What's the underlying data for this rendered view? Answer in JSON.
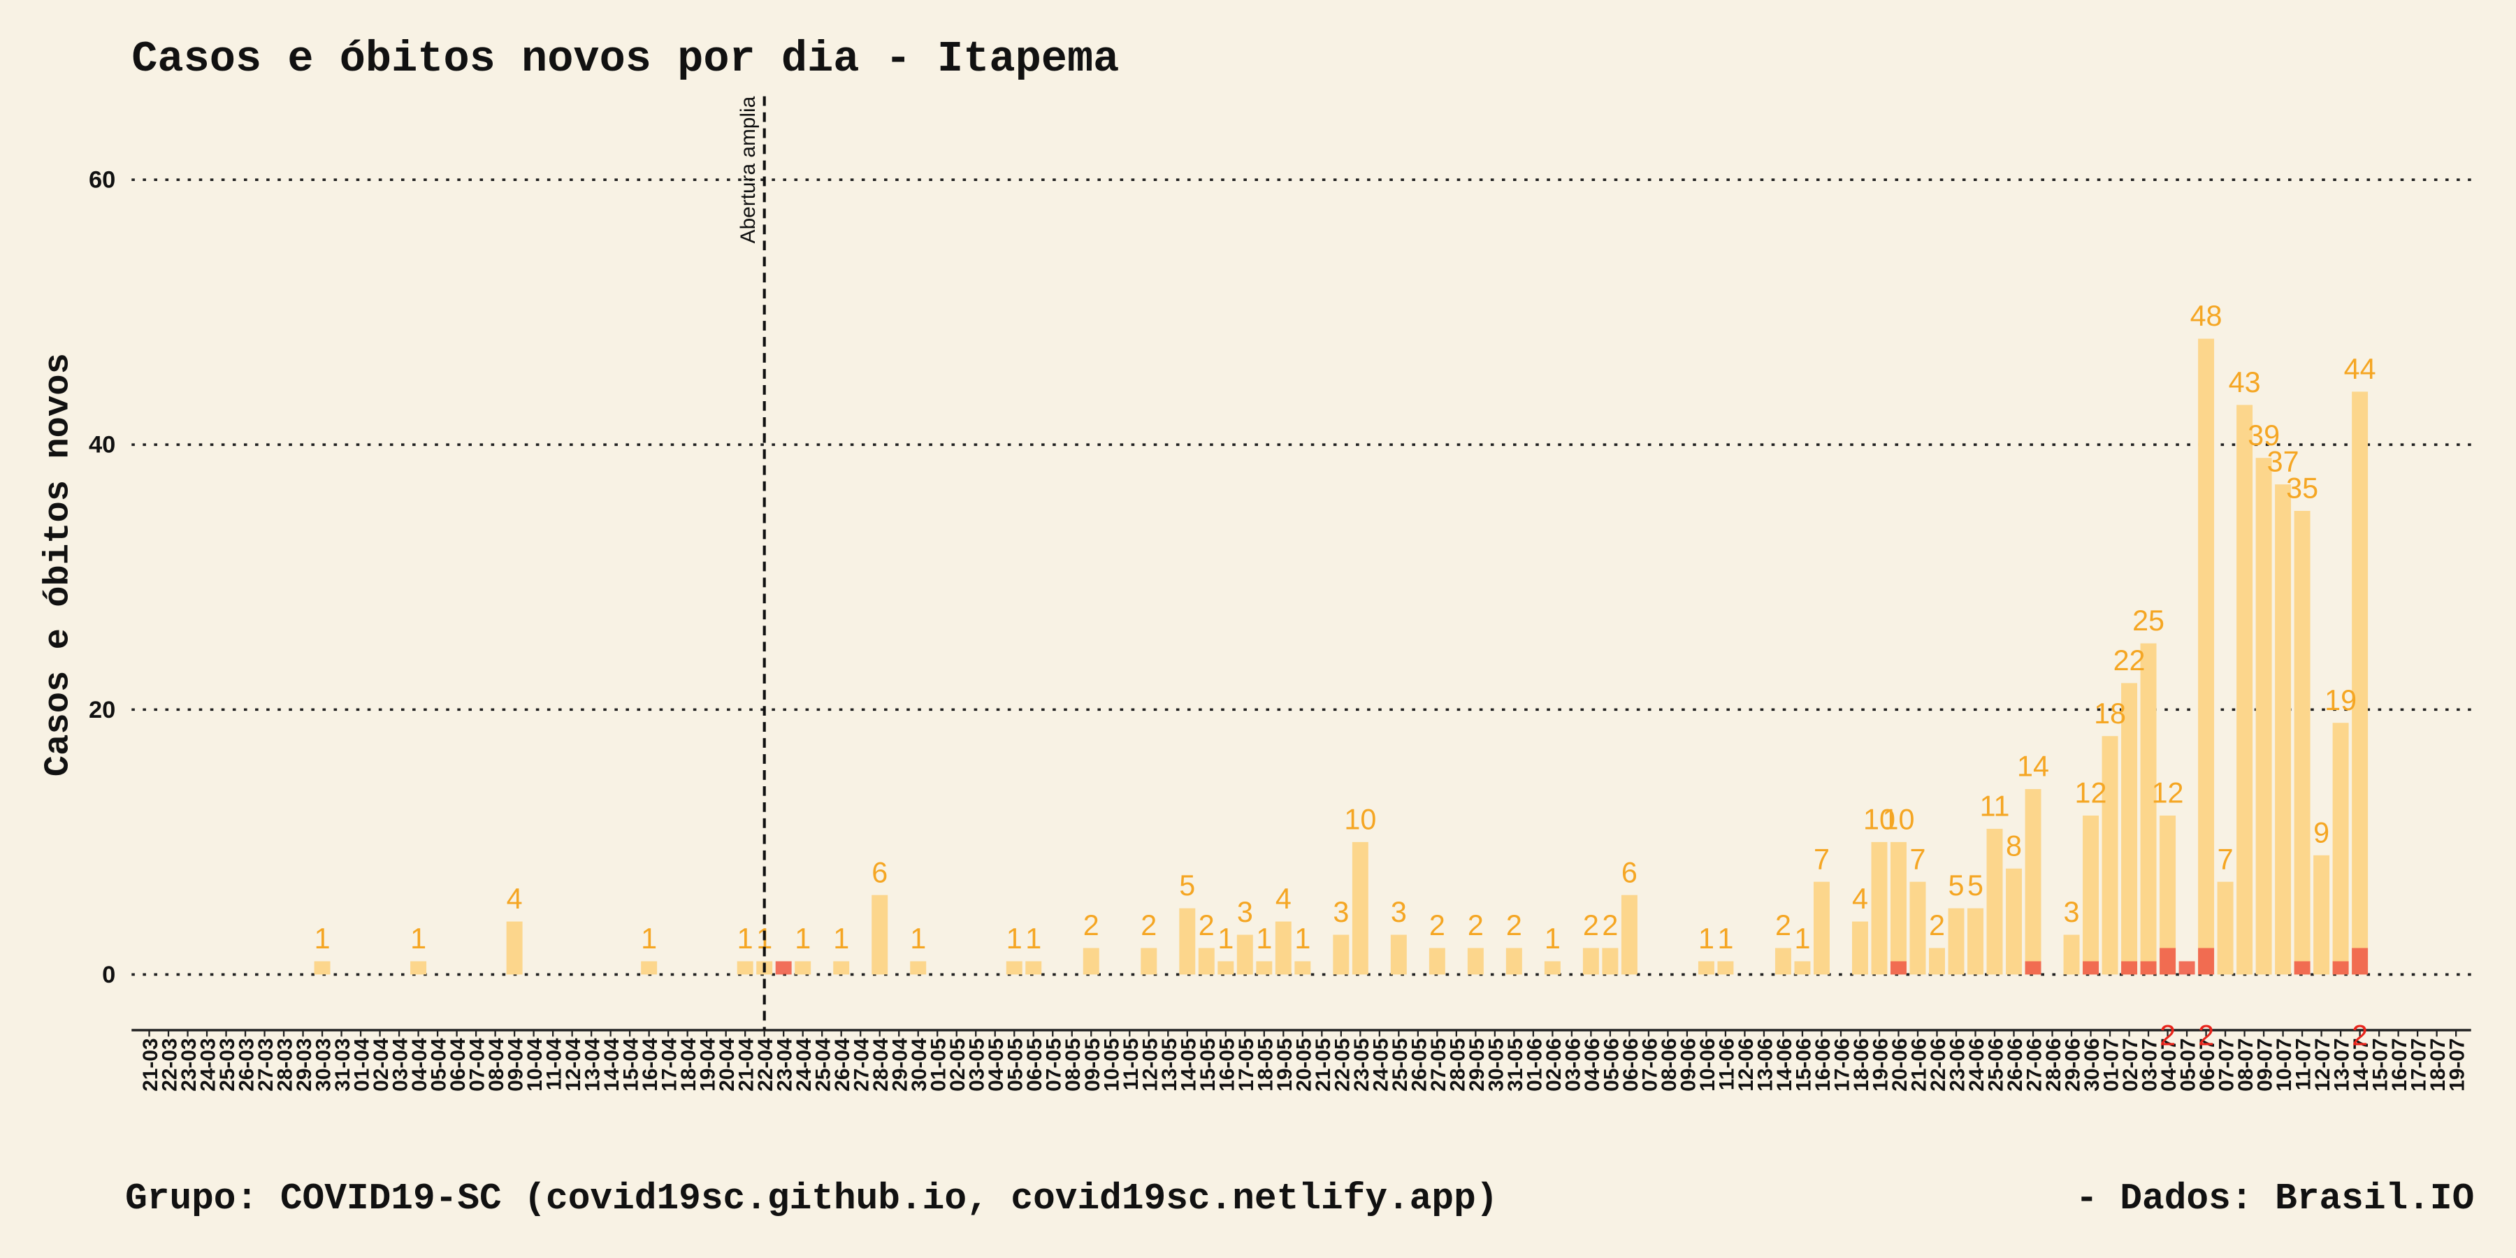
{
  "chart_data": {
    "type": "bar",
    "title": "Casos e óbitos novos por dia -  Itapema",
    "y_label": "Casos e óbitos novos",
    "footer_left": "Grupo: COVID19-SC (covid19sc.github.io, covid19sc.netlify.app)",
    "footer_right": "-  Dados: Brasil.IO",
    "categories": [
      "21-03",
      "22-03",
      "23-03",
      "24-03",
      "25-03",
      "26-03",
      "27-03",
      "28-03",
      "29-03",
      "30-03",
      "31-03",
      "01-04",
      "02-04",
      "03-04",
      "04-04",
      "05-04",
      "06-04",
      "07-04",
      "08-04",
      "09-04",
      "10-04",
      "11-04",
      "12-04",
      "13-04",
      "14-04",
      "15-04",
      "16-04",
      "17-04",
      "18-04",
      "19-04",
      "20-04",
      "21-04",
      "22-04",
      "23-04",
      "24-04",
      "25-04",
      "26-04",
      "27-04",
      "28-04",
      "29-04",
      "30-04",
      "01-05",
      "02-05",
      "03-05",
      "04-05",
      "05-05",
      "06-05",
      "07-05",
      "08-05",
      "09-05",
      "10-05",
      "11-05",
      "12-05",
      "13-05",
      "14-05",
      "15-05",
      "16-05",
      "17-05",
      "18-05",
      "19-05",
      "20-05",
      "21-05",
      "22-05",
      "23-05",
      "24-05",
      "25-05",
      "26-05",
      "27-05",
      "28-05",
      "29-05",
      "30-05",
      "31-05",
      "01-06",
      "02-06",
      "03-06",
      "04-06",
      "05-06",
      "06-06",
      "07-06",
      "08-06",
      "09-06",
      "10-06",
      "11-06",
      "12-06",
      "13-06",
      "14-06",
      "15-06",
      "16-06",
      "17-06",
      "18-06",
      "19-06",
      "20-06",
      "21-06",
      "22-06",
      "23-06",
      "24-06",
      "25-06",
      "26-06",
      "27-06",
      "28-06",
      "29-06",
      "30-06",
      "01-07",
      "02-07",
      "03-07",
      "04-07",
      "05-07",
      "06-07",
      "07-07",
      "08-07",
      "09-07",
      "10-07",
      "11-07",
      "12-07",
      "13-07",
      "14-07",
      "15-07",
      "16-07",
      "17-07",
      "18-07",
      "19-07"
    ],
    "series": [
      {
        "name": "Casos",
        "color": "#fcd68c",
        "label_color": "#f5a623",
        "values": [
          0,
          0,
          0,
          0,
          0,
          0,
          0,
          0,
          0,
          1,
          0,
          0,
          0,
          0,
          1,
          0,
          0,
          0,
          0,
          4,
          0,
          0,
          0,
          0,
          0,
          0,
          1,
          0,
          0,
          0,
          0,
          1,
          1,
          0,
          1,
          0,
          1,
          0,
          6,
          0,
          1,
          0,
          0,
          0,
          0,
          1,
          1,
          0,
          0,
          2,
          0,
          0,
          2,
          0,
          5,
          2,
          1,
          3,
          1,
          4,
          1,
          0,
          3,
          10,
          0,
          3,
          0,
          2,
          0,
          2,
          0,
          2,
          0,
          1,
          0,
          2,
          2,
          6,
          0,
          0,
          0,
          1,
          1,
          0,
          0,
          2,
          1,
          7,
          0,
          4,
          10,
          10,
          7,
          2,
          5,
          5,
          11,
          8,
          14,
          0,
          3,
          12,
          18,
          22,
          25,
          12,
          0,
          48,
          7,
          43,
          39,
          37,
          35,
          9,
          19,
          44,
          0,
          0,
          0,
          0,
          0
        ]
      },
      {
        "name": "Óbitos",
        "color": "#f0604a",
        "label_color": "#e8231a",
        "values": [
          0,
          0,
          0,
          0,
          0,
          0,
          0,
          0,
          0,
          0,
          0,
          0,
          0,
          0,
          0,
          0,
          0,
          0,
          0,
          0,
          0,
          0,
          0,
          0,
          0,
          0,
          0,
          0,
          0,
          0,
          0,
          0,
          0,
          1,
          0,
          0,
          0,
          0,
          0,
          0,
          0,
          0,
          0,
          0,
          0,
          0,
          0,
          0,
          0,
          0,
          0,
          0,
          0,
          0,
          0,
          0,
          0,
          0,
          0,
          0,
          0,
          0,
          0,
          0,
          0,
          0,
          0,
          0,
          0,
          0,
          0,
          0,
          0,
          0,
          0,
          0,
          0,
          0,
          0,
          0,
          0,
          0,
          0,
          0,
          0,
          0,
          0,
          0,
          0,
          0,
          0,
          1,
          0,
          0,
          0,
          0,
          0,
          0,
          1,
          0,
          0,
          1,
          0,
          1,
          1,
          2,
          1,
          2,
          0,
          0,
          0,
          0,
          1,
          0,
          1,
          2,
          0,
          0,
          0,
          0,
          0
        ],
        "value_labels": [
          null,
          null,
          null,
          null,
          null,
          null,
          null,
          null,
          null,
          null,
          null,
          null,
          null,
          null,
          null,
          null,
          null,
          null,
          null,
          null,
          null,
          null,
          null,
          null,
          null,
          null,
          null,
          null,
          null,
          null,
          null,
          null,
          null,
          null,
          null,
          null,
          null,
          null,
          null,
          null,
          null,
          null,
          null,
          null,
          null,
          null,
          null,
          null,
          null,
          null,
          null,
          null,
          null,
          null,
          null,
          null,
          null,
          null,
          null,
          null,
          null,
          null,
          null,
          null,
          null,
          null,
          null,
          null,
          null,
          null,
          null,
          null,
          null,
          null,
          null,
          null,
          null,
          null,
          null,
          null,
          null,
          null,
          null,
          null,
          null,
          null,
          null,
          null,
          null,
          null,
          null,
          null,
          null,
          null,
          null,
          null,
          null,
          null,
          null,
          null,
          null,
          null,
          null,
          null,
          null,
          "2",
          null,
          "2",
          null,
          null,
          null,
          null,
          null,
          null,
          null,
          "2",
          null,
          null,
          null,
          null,
          null
        ]
      }
    ],
    "annotations": [
      {
        "x": "22-04",
        "text": "Abertura amplia"
      }
    ],
    "ylim": [
      -4.2,
      66.3
    ],
    "yticks": [
      0,
      20,
      40,
      60
    ],
    "grid": true
  }
}
